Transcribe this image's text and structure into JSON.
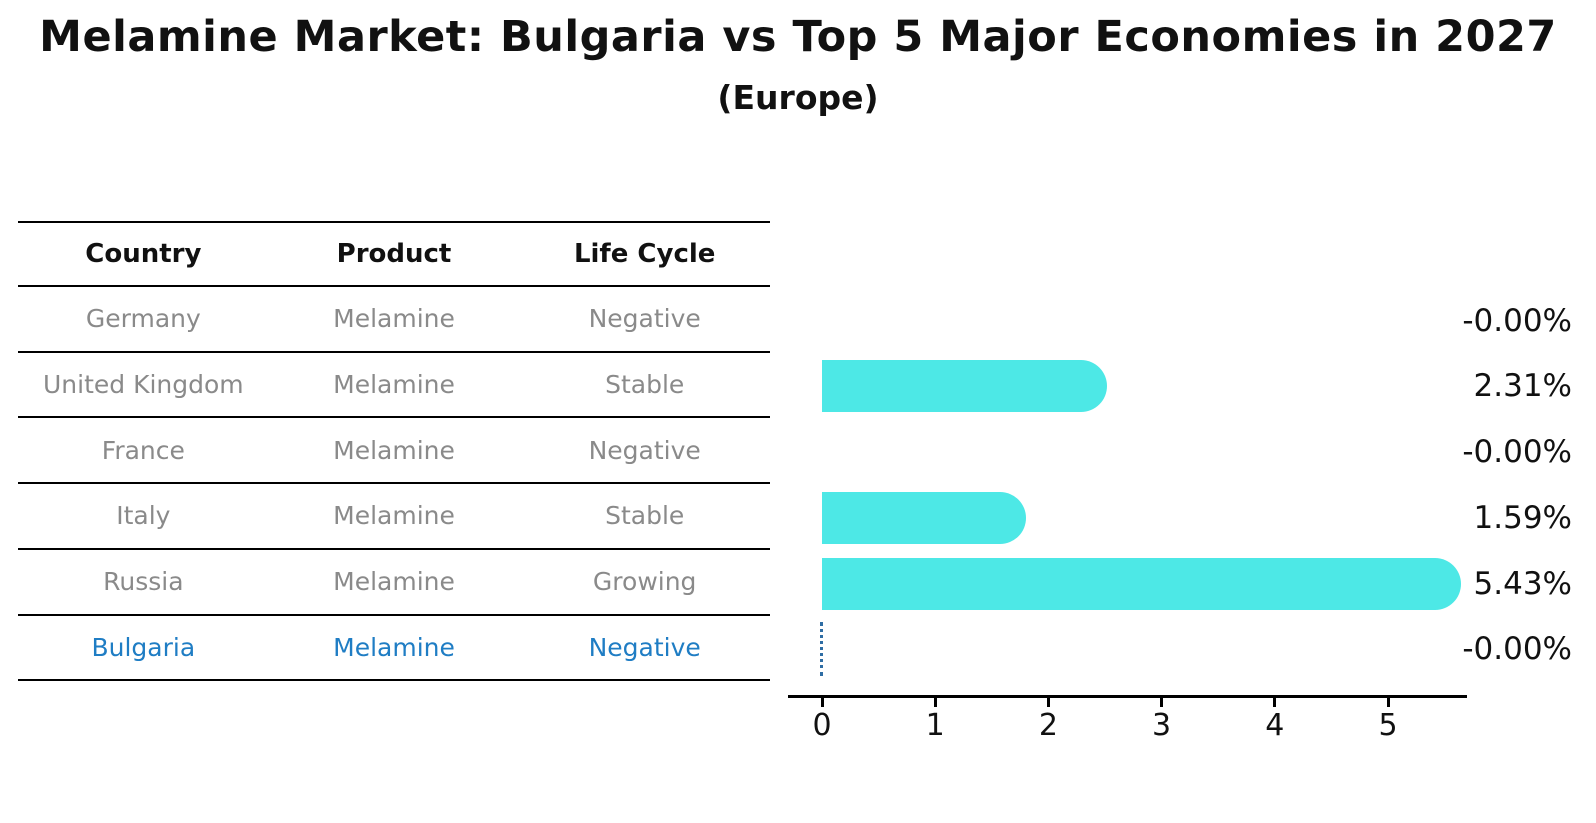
{
  "chart_data": {
    "type": "bar",
    "orientation": "horizontal",
    "title": "Melamine Market: Bulgaria vs Top 5 Major Economies in 2027",
    "subtitle": "(Europe)",
    "categories": [
      "Germany",
      "United Kingdom",
      "France",
      "Italy",
      "Russia",
      "Bulgaria"
    ],
    "values": [
      -0.0,
      2.31,
      -0.0,
      1.59,
      5.43,
      -0.0
    ],
    "value_labels": [
      "-0.00%",
      "2.31%",
      "-0.00%",
      "1.59%",
      "5.43%",
      "-0.00%"
    ],
    "highlight_category": "Bulgaria",
    "highlight_marker_value": 0,
    "xticks": [
      "0",
      "1",
      "2",
      "3",
      "4",
      "5"
    ],
    "xlim": [
      0,
      5.7
    ],
    "grid": false,
    "legend": false,
    "xlabel": "",
    "ylabel": ""
  },
  "table": {
    "headers": [
      "Country",
      "Product",
      "Life Cycle"
    ],
    "rows": [
      {
        "country": "Germany",
        "product": "Melamine",
        "life_cycle": "Negative",
        "highlight": false
      },
      {
        "country": "United Kingdom",
        "product": "Melamine",
        "life_cycle": "Stable",
        "highlight": false
      },
      {
        "country": "France",
        "product": "Melamine",
        "life_cycle": "Negative",
        "highlight": false
      },
      {
        "country": "Italy",
        "product": "Melamine",
        "life_cycle": "Stable",
        "highlight": false
      },
      {
        "country": "Russia",
        "product": "Melamine",
        "life_cycle": "Growing",
        "highlight": false
      },
      {
        "country": "Bulgaria",
        "product": "Melamine",
        "life_cycle": "Negative",
        "highlight": true
      }
    ]
  },
  "colors": {
    "bar": "#4de8e6",
    "highlight_text": "#1f7dc4",
    "marker_line": "#2e6da4",
    "row_text": "#8a8a8a",
    "header_text": "#111111",
    "axis": "#000000",
    "background": "#ffffff"
  }
}
